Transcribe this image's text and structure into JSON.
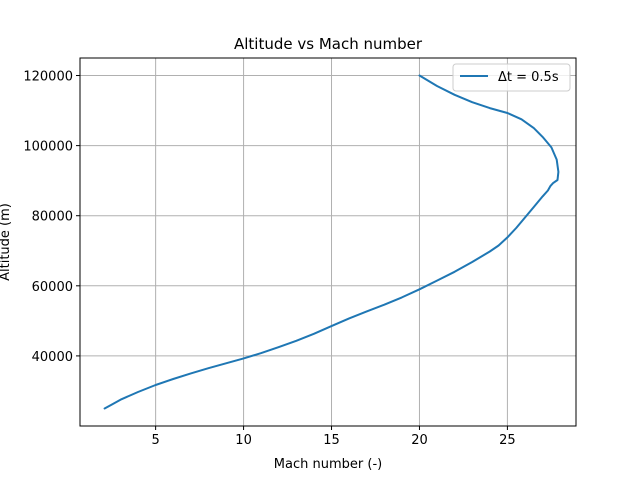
{
  "chart_data": {
    "type": "line",
    "title": "Altitude vs Mach number",
    "xlabel": "Mach number (-)",
    "ylabel": "Altitude (m)",
    "xlim": [
      0.7,
      28.9
    ],
    "ylim": [
      20000,
      125000
    ],
    "xticks": [
      5,
      10,
      15,
      20,
      25
    ],
    "yticks": [
      40000,
      60000,
      80000,
      100000,
      120000
    ],
    "grid": true,
    "legend_position": "top-right",
    "line_color": "#1f77b4",
    "series": [
      {
        "name": "Δt = 0.5s",
        "x": [
          20.0,
          21.0,
          22.0,
          23.0,
          24.0,
          25.0,
          25.8,
          26.5,
          27.0,
          27.5,
          27.8,
          27.9,
          27.85,
          27.6,
          27.45,
          27.3,
          27.0,
          26.5,
          26.0,
          25.5,
          25.0,
          24.5,
          24.0,
          23.0,
          22.0,
          21.0,
          20.0,
          19.0,
          18.0,
          17.0,
          16.0,
          15.0,
          14.0,
          13.0,
          12.0,
          11.0,
          10.0,
          9.0,
          8.0,
          7.0,
          6.0,
          5.0,
          4.0,
          3.0,
          2.5,
          2.1
        ],
        "y": [
          120000,
          117000,
          114500,
          112400,
          110700,
          109300,
          107500,
          105000,
          102500,
          99500,
          96000,
          92500,
          90200,
          89300,
          88500,
          87200,
          85500,
          82500,
          79500,
          76500,
          73800,
          71500,
          69800,
          66800,
          64000,
          61500,
          59000,
          56700,
          54600,
          52700,
          50700,
          48500,
          46300,
          44300,
          42500,
          40800,
          39300,
          37900,
          36500,
          35000,
          33400,
          31700,
          29700,
          27500,
          26100,
          25000
        ]
      }
    ]
  }
}
